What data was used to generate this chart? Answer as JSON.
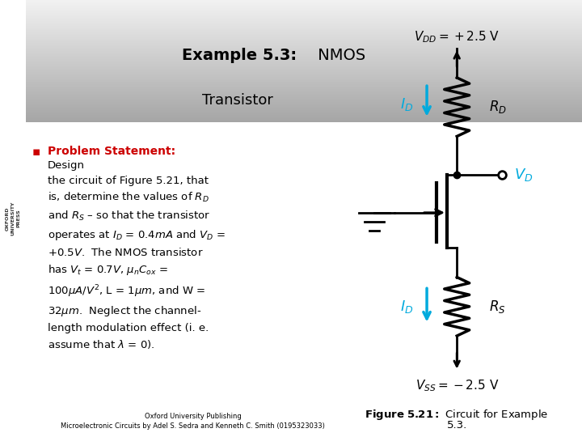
{
  "bg_color": "#f0f0f0",
  "white_bg": "#ffffff",
  "header_bg": "#e8e8e8",
  "title_bold": "Example 5.3:",
  "title_normal": " NMOS\n    Transistor",
  "oxford_text": "OXFORD\nUNIVERSITY\nPRESS",
  "problem_bold": "Problem Statement:",
  "problem_text": " Design\nthe circuit of Figure 5.21, that\nis, determine the values of Rᴇ\nand Rₛ – so that the transistor\noperates at Iᴇ = 0.4mA and Vᴇ =\n+0.5V.  The NMOS transistor\nhas Vₜ = 0.7V, μnCox =\n100μA/V², L = 1μm, and W =\n32μm.  Neglect the channel-\nlength modulation effect (i. e.\nassume that λ = 0).",
  "figure_caption_bold": "Figure 5.21:",
  "figure_caption_normal": " Circuit for Example\n5.3.",
  "footer_text": "Oxford University Publishing\nMicroelectronic Circuits by Adel S. Sedra and Kenneth C. Smith (0195323033)",
  "vdd_text": "Vᴅᴅ = +2.5 V",
  "vss_text": "Vₛₛ = −2.5 V",
  "id_color": "#00aadd",
  "circuit_color": "#000000",
  "label_color": "#000000",
  "red_color": "#cc0000",
  "bullet_color": "#cc0000",
  "header_gradient_start": "#cccccc",
  "header_gradient_end": "#888888"
}
